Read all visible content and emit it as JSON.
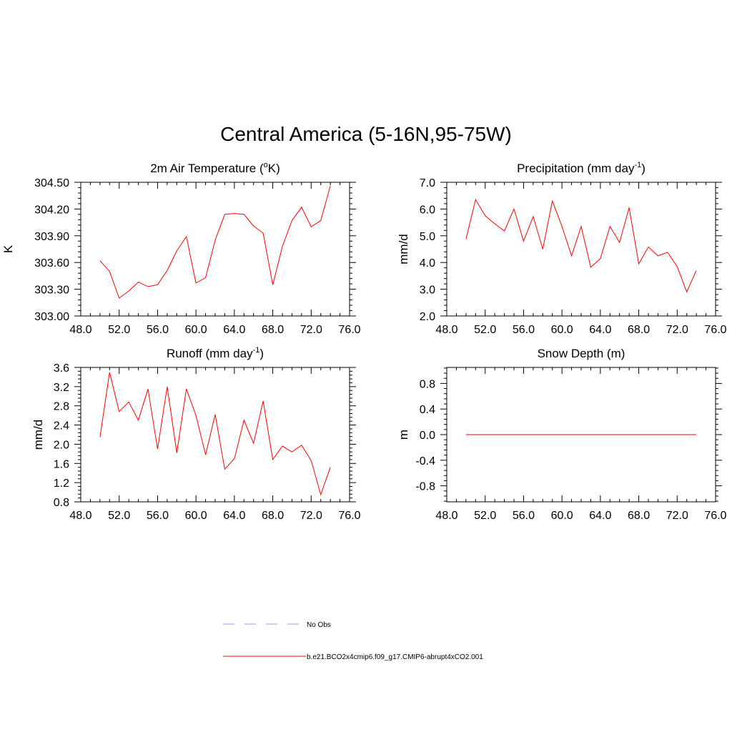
{
  "figure": {
    "title": "Central America (5-16N,95-75W)"
  },
  "colors": {
    "model_line": "#ff0000",
    "obs_line": "#9999ff",
    "axis": "#000000"
  },
  "legend": {
    "items": [
      {
        "label": "No Obs",
        "style": "dashed"
      },
      {
        "label": "b.e21.BCO2x4cmip6.f09_g17.CMIP6-abrupt4xCO2.001",
        "style": "solid"
      }
    ]
  },
  "chart_data": [
    {
      "type": "line",
      "title": "2m Air Temperature (",
      "title_super": "o",
      "title_after": "K)",
      "ylabel": "K",
      "xlim": [
        48,
        76
      ],
      "ylim": [
        303.0,
        304.5
      ],
      "xticks": [
        "48.0",
        "52.0",
        "56.0",
        "60.0",
        "64.0",
        "68.0",
        "72.0",
        "76.0"
      ],
      "yticks": [
        "303.00",
        "303.30",
        "303.60",
        "303.90",
        "304.20",
        "304.50"
      ],
      "x": [
        50,
        51,
        52,
        53,
        54,
        55,
        56,
        57,
        58,
        59,
        60,
        61,
        62,
        63,
        64,
        65,
        66,
        67,
        68,
        69,
        70,
        71,
        72,
        73,
        74
      ],
      "values": [
        303.62,
        303.5,
        303.2,
        303.28,
        303.38,
        303.33,
        303.35,
        303.51,
        303.73,
        303.89,
        303.37,
        303.43,
        303.85,
        304.14,
        304.15,
        304.14,
        304.01,
        303.93,
        303.35,
        303.78,
        304.07,
        304.22,
        304.0,
        304.07,
        304.46
      ]
    },
    {
      "type": "line",
      "title": "Precipitation (mm day",
      "title_super": "-1",
      "title_after": ")",
      "ylabel": "mm/d",
      "xlim": [
        48,
        76
      ],
      "ylim": [
        2.0,
        7.0
      ],
      "xticks": [
        "48.0",
        "52.0",
        "56.0",
        "60.0",
        "64.0",
        "68.0",
        "72.0",
        "76.0"
      ],
      "yticks": [
        "2.0",
        "3.0",
        "4.0",
        "5.0",
        "6.0",
        "7.0"
      ],
      "x": [
        50,
        51,
        52,
        53,
        54,
        55,
        56,
        57,
        58,
        59,
        60,
        61,
        62,
        63,
        64,
        65,
        66,
        67,
        68,
        69,
        70,
        71,
        72,
        73,
        74
      ],
      "values": [
        4.88,
        6.35,
        5.75,
        5.45,
        5.18,
        6.0,
        4.8,
        5.72,
        4.5,
        6.3,
        5.35,
        4.25,
        5.35,
        3.82,
        4.15,
        5.35,
        4.75,
        6.05,
        3.95,
        4.58,
        4.25,
        4.38,
        3.85,
        2.9,
        3.7
      ]
    },
    {
      "type": "line",
      "title": "Runoff (mm day",
      "title_super": "-1",
      "title_after": ")",
      "ylabel": "mm/d",
      "xlim": [
        48,
        76
      ],
      "ylim": [
        0.8,
        3.6
      ],
      "xticks": [
        "48.0",
        "52.0",
        "56.0",
        "60.0",
        "64.0",
        "68.0",
        "72.0",
        "76.0"
      ],
      "yticks": [
        "0.8",
        "1.2",
        "1.6",
        "2.0",
        "2.4",
        "2.8",
        "3.2",
        "3.6"
      ],
      "x": [
        50,
        51,
        52,
        53,
        54,
        55,
        56,
        57,
        58,
        59,
        60,
        61,
        62,
        63,
        64,
        65,
        66,
        67,
        68,
        69,
        70,
        71,
        72,
        73,
        74
      ],
      "values": [
        2.15,
        3.5,
        2.68,
        2.88,
        2.5,
        3.15,
        1.9,
        3.2,
        1.82,
        3.15,
        2.6,
        1.78,
        2.62,
        1.48,
        1.7,
        2.5,
        2.02,
        2.9,
        1.68,
        1.96,
        1.84,
        1.98,
        1.66,
        0.95,
        1.52
      ]
    },
    {
      "type": "line",
      "title": "Snow Depth (m)",
      "title_super": "",
      "title_after": "",
      "ylabel": "m",
      "xlim": [
        48,
        76
      ],
      "ylim": [
        -1.05,
        1.05
      ],
      "xticks": [
        "48.0",
        "52.0",
        "56.0",
        "60.0",
        "64.0",
        "68.0",
        "72.0",
        "76.0"
      ],
      "yticks": [
        "-0.8",
        "-0.4",
        "0.0",
        "0.4",
        "0.8"
      ],
      "x": [
        50,
        51,
        52,
        53,
        54,
        55,
        56,
        57,
        58,
        59,
        60,
        61,
        62,
        63,
        64,
        65,
        66,
        67,
        68,
        69,
        70,
        71,
        72,
        73,
        74
      ],
      "values": [
        0,
        0,
        0,
        0,
        0,
        0,
        0,
        0,
        0,
        0,
        0,
        0,
        0,
        0,
        0,
        0,
        0,
        0,
        0,
        0,
        0,
        0,
        0,
        0,
        0
      ]
    }
  ]
}
